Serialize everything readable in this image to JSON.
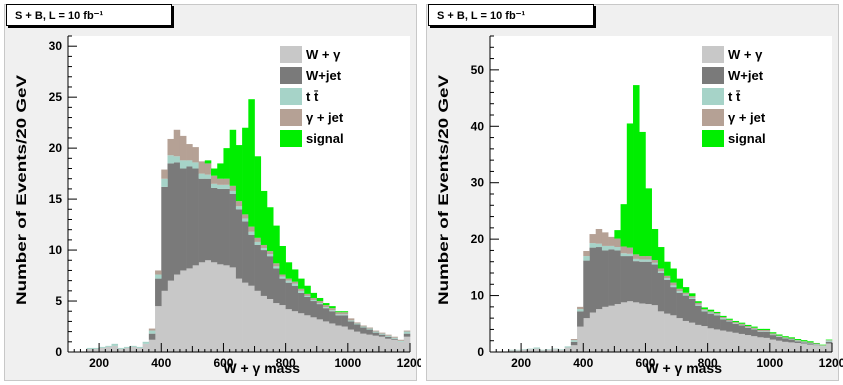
{
  "chart_data": [
    {
      "type": "bar",
      "stacked": true,
      "title": "S + B, L = 10 fb⁻¹",
      "xlabel": "W + γ mass",
      "ylabel": "Number of Events/20 GeV",
      "xlim": [
        100,
        1200
      ],
      "ylim": [
        0,
        31
      ],
      "xticks": [
        "200",
        "400",
        "600",
        "800",
        "1000",
        "1200"
      ],
      "yticks": [
        "0",
        "5",
        "10",
        "15",
        "20",
        "25",
        "30"
      ],
      "bin_width": 20,
      "x": [
        100,
        120,
        140,
        160,
        180,
        200,
        220,
        240,
        260,
        280,
        300,
        320,
        340,
        360,
        380,
        400,
        420,
        440,
        460,
        480,
        500,
        520,
        540,
        560,
        580,
        600,
        620,
        640,
        660,
        680,
        700,
        720,
        740,
        760,
        780,
        800,
        820,
        840,
        860,
        880,
        900,
        920,
        940,
        960,
        980,
        1000,
        1020,
        1040,
        1060,
        1080,
        1100,
        1120,
        1140,
        1160,
        1180
      ],
      "legend": [
        "W + γ",
        "W+jet",
        "t t̄",
        "γ + jet",
        "signal"
      ],
      "legend_placement": "top-right",
      "series": [
        {
          "name": "W + γ",
          "color": "#c8c8c8",
          "values": [
            0,
            0,
            0,
            0.3,
            0.3,
            0.4,
            0.5,
            0.6,
            0.3,
            0.4,
            0.5,
            0.4,
            0.8,
            1.2,
            4.5,
            6.0,
            7.0,
            7.6,
            8.0,
            8.2,
            8.5,
            8.8,
            9.0,
            8.8,
            8.6,
            8.5,
            8.3,
            7.2,
            6.8,
            6.5,
            6.0,
            5.5,
            5.2,
            4.8,
            4.6,
            4.2,
            4.0,
            3.8,
            3.6,
            3.4,
            3.2,
            3.0,
            2.8,
            2.6,
            2.5,
            2.2,
            2.0,
            1.8,
            1.7,
            1.6,
            1.5,
            1.3,
            1.2,
            1.0,
            1.5
          ]
        },
        {
          "name": "W+jet",
          "color": "#7a7a7a",
          "values": [
            0,
            0,
            0,
            0,
            0,
            0,
            0,
            0,
            0,
            0,
            0,
            0,
            0,
            0.6,
            2.7,
            10.2,
            11.5,
            11.0,
            10.0,
            10.0,
            9.5,
            8.2,
            8.0,
            7.3,
            7.4,
            7.5,
            7.2,
            6.8,
            6.0,
            5.0,
            4.5,
            4.5,
            4.2,
            3.4,
            2.6,
            2.6,
            2.5,
            2.0,
            1.8,
            1.6,
            1.5,
            1.3,
            1.2,
            1.0,
            1.1,
            0.8,
            0.7,
            0.6,
            0.5,
            0.3,
            0.2,
            0.2,
            0.1,
            0,
            0.3
          ]
        },
        {
          "name": "t t̄",
          "color": "#a6d3c8",
          "values": [
            0,
            0,
            0,
            0.1,
            0.1,
            0.1,
            0.1,
            0.2,
            0.1,
            0.1,
            0.1,
            0.1,
            0.2,
            0.3,
            0.4,
            0.8,
            0.8,
            0.6,
            0.8,
            0.6,
            0.6,
            0.5,
            0.4,
            0.4,
            0.4,
            0.4,
            0.3,
            0.3,
            0.3,
            0.3,
            0.3,
            0.2,
            0.2,
            0.2,
            0.2,
            0.2,
            0.2,
            0.2,
            0.1,
            0.1,
            0.1,
            0.1,
            0.1,
            0.1,
            0.1,
            0.1,
            0.1,
            0.1,
            0.1,
            0.1,
            0.1,
            0.1,
            0.1,
            0.1,
            0.2
          ]
        },
        {
          "name": "γ + jet",
          "color": "#b5a195",
          "values": [
            0,
            0,
            0,
            0,
            0,
            0,
            0,
            0,
            0,
            0,
            0,
            0,
            0,
            0.2,
            0.4,
            0.9,
            1.6,
            2.6,
            2.4,
            1.6,
            1.5,
            1.2,
            1.1,
            0.8,
            0.6,
            0.6,
            0.5,
            0.5,
            0.4,
            0.5,
            0.4,
            0.3,
            0.3,
            0.3,
            0.2,
            0.2,
            0.2,
            0.2,
            0.2,
            0.2,
            0.2,
            0.2,
            0.2,
            0.2,
            0.2,
            0.2,
            0.1,
            0.1,
            0.1,
            0.1,
            0.1,
            0.1,
            0.1,
            0.1,
            0.1
          ]
        },
        {
          "name": "signal",
          "color": "#00ee00",
          "values": [
            0,
            0,
            0,
            0,
            0,
            0,
            0,
            0,
            0,
            0,
            0,
            0,
            0,
            0,
            0,
            0,
            0,
            0,
            0,
            0,
            0,
            0,
            0.3,
            0.7,
            1.5,
            3.0,
            5.5,
            5.5,
            8.5,
            12.5,
            8.0,
            5.3,
            4.3,
            3.7,
            2.8,
            1.6,
            1.2,
            1.0,
            0.8,
            0.5,
            0.3,
            0.2,
            0.2,
            0.1,
            0.1,
            0,
            0,
            0,
            0,
            0,
            0,
            0,
            0,
            0,
            0
          ]
        }
      ]
    },
    {
      "type": "bar",
      "stacked": true,
      "title": "S + B, L = 10 fb⁻¹",
      "xlabel": "W + γ mass",
      "ylabel": "Number of Events/20 GeV",
      "xlim": [
        100,
        1200
      ],
      "ylim": [
        0,
        56
      ],
      "xticks": [
        "200",
        "400",
        "600",
        "800",
        "1000",
        "1200"
      ],
      "yticks": [
        "0",
        "10",
        "20",
        "30",
        "40",
        "50"
      ],
      "bin_width": 20,
      "x": [
        100,
        120,
        140,
        160,
        180,
        200,
        220,
        240,
        260,
        280,
        300,
        320,
        340,
        360,
        380,
        400,
        420,
        440,
        460,
        480,
        500,
        520,
        540,
        560,
        580,
        600,
        620,
        640,
        660,
        680,
        700,
        720,
        740,
        760,
        780,
        800,
        820,
        840,
        860,
        880,
        900,
        920,
        940,
        960,
        980,
        1000,
        1020,
        1040,
        1060,
        1080,
        1100,
        1120,
        1140,
        1160,
        1180
      ],
      "legend": [
        "W + γ",
        "W+jet",
        "t t̄",
        "γ + jet",
        "signal"
      ],
      "legend_placement": "top-right",
      "series": [
        {
          "name": "W + γ",
          "color": "#c8c8c8",
          "values": [
            0,
            0,
            0,
            0.3,
            0.3,
            0.4,
            0.5,
            0.6,
            0.3,
            0.4,
            0.5,
            0.4,
            0.8,
            1.2,
            4.5,
            6.0,
            7.0,
            7.6,
            8.0,
            8.2,
            8.5,
            8.8,
            9.0,
            8.8,
            8.6,
            8.5,
            8.3,
            7.2,
            6.8,
            6.5,
            6.0,
            5.5,
            5.2,
            4.8,
            4.6,
            4.2,
            4.0,
            3.8,
            3.6,
            3.4,
            3.2,
            3.0,
            2.8,
            2.6,
            2.5,
            2.2,
            2.0,
            1.8,
            1.7,
            1.6,
            1.5,
            1.3,
            1.2,
            1.0,
            1.5
          ]
        },
        {
          "name": "W+jet",
          "color": "#7a7a7a",
          "values": [
            0,
            0,
            0,
            0,
            0,
            0,
            0,
            0,
            0,
            0,
            0,
            0,
            0,
            0.6,
            2.7,
            10.2,
            11.5,
            11.0,
            10.0,
            10.0,
            9.5,
            8.2,
            8.0,
            7.3,
            7.4,
            7.5,
            7.2,
            6.8,
            6.0,
            5.0,
            4.5,
            4.5,
            4.2,
            3.4,
            2.6,
            2.6,
            2.5,
            2.0,
            1.8,
            1.6,
            1.5,
            1.3,
            1.2,
            1.0,
            1.1,
            0.8,
            0.7,
            0.6,
            0.5,
            0.3,
            0.2,
            0.2,
            0.1,
            0,
            0.3
          ]
        },
        {
          "name": "t t̄",
          "color": "#a6d3c8",
          "values": [
            0,
            0,
            0,
            0.1,
            0.1,
            0.1,
            0.1,
            0.2,
            0.1,
            0.1,
            0.1,
            0.1,
            0.2,
            0.3,
            0.4,
            0.8,
            0.8,
            0.6,
            0.8,
            0.6,
            0.6,
            0.5,
            0.4,
            0.4,
            0.4,
            0.4,
            0.3,
            0.3,
            0.3,
            0.3,
            0.3,
            0.2,
            0.2,
            0.2,
            0.2,
            0.2,
            0.2,
            0.2,
            0.1,
            0.1,
            0.1,
            0.1,
            0.1,
            0.1,
            0.1,
            0.1,
            0.1,
            0.1,
            0.1,
            0.1,
            0.1,
            0.1,
            0.1,
            0.1,
            0.2
          ]
        },
        {
          "name": "γ + jet",
          "color": "#b5a195",
          "values": [
            0,
            0,
            0,
            0,
            0,
            0,
            0,
            0,
            0,
            0,
            0,
            0,
            0,
            0.2,
            0.4,
            0.9,
            1.6,
            2.6,
            2.4,
            1.6,
            1.5,
            1.2,
            1.1,
            0.8,
            0.6,
            0.6,
            0.5,
            0.5,
            0.4,
            0.5,
            0.4,
            0.3,
            0.3,
            0.3,
            0.2,
            0.2,
            0.2,
            0.2,
            0.2,
            0.2,
            0.2,
            0.2,
            0.2,
            0.2,
            0.2,
            0.2,
            0.1,
            0.1,
            0.1,
            0.1,
            0.1,
            0.1,
            0.1,
            0.1,
            0.1
          ]
        },
        {
          "name": "signal",
          "color": "#00ee00",
          "values": [
            0,
            0,
            0,
            0,
            0,
            0,
            0,
            0,
            0,
            0,
            0,
            0,
            0,
            0,
            0,
            0,
            0,
            0,
            0,
            0,
            1.5,
            7.5,
            22.0,
            30.0,
            22.0,
            12.0,
            5.5,
            3.8,
            2.5,
            2.5,
            1.8,
            1.0,
            0.5,
            0.3,
            0.3,
            0.3,
            0.2,
            0.2,
            0.2,
            0.2,
            0.2,
            0.2,
            0.2,
            0.2,
            0.2,
            0.2,
            0.2,
            0.2,
            0.2,
            0.2,
            0.2,
            0.2,
            0.1,
            0.1,
            0.1
          ]
        }
      ]
    }
  ]
}
